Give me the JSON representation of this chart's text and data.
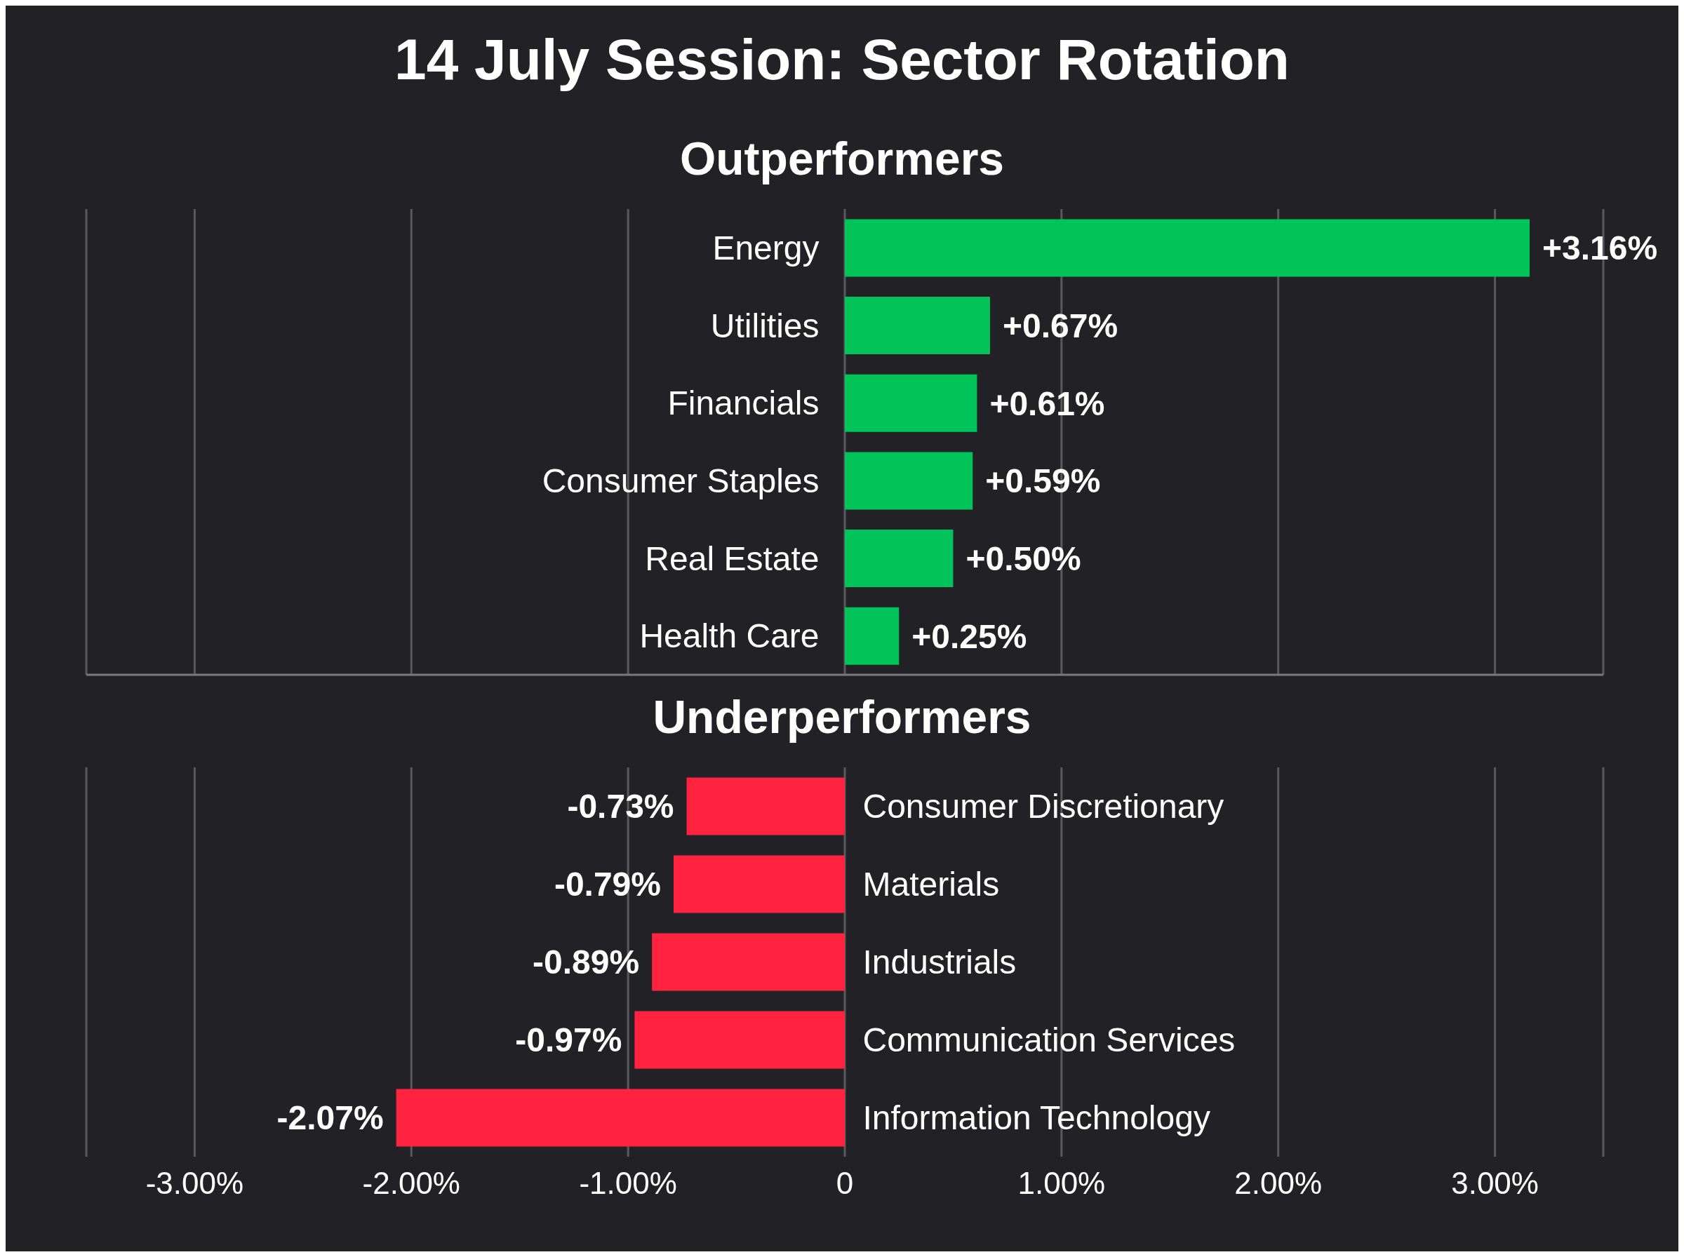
{
  "chart_data": [
    {
      "type": "bar",
      "orientation": "horizontal",
      "title": "14 July Session: Sector Rotation",
      "subtitle": "Outperformers",
      "categories": [
        "Energy",
        "Utilities",
        "Financials",
        "Consumer Staples",
        "Real Estate",
        "Health Care"
      ],
      "values": [
        3.16,
        0.67,
        0.61,
        0.59,
        0.5,
        0.25
      ],
      "color": "#00c35a",
      "value_labels": [
        "+3.16%",
        "+0.67%",
        "+0.61%",
        "+0.59%",
        "+0.50%",
        "+0.25%"
      ],
      "xlim": [
        -3.5,
        3.5
      ],
      "xticks": [
        {
          "value": -3,
          "label": null
        },
        {
          "value": -2,
          "label": null
        },
        {
          "value": -1,
          "label": null
        },
        {
          "value": 0,
          "label": null
        },
        {
          "value": 1,
          "label": null
        },
        {
          "value": 2,
          "label": null
        },
        {
          "value": 3,
          "label": null
        }
      ],
      "grid": "x",
      "tick_labels": "y"
    },
    {
      "type": "bar",
      "orientation": "horizontal",
      "title": "Underperformers",
      "categories": [
        "Consumer Discretionary",
        "Materials",
        "Industrials",
        "Communication Services",
        "Information Technology"
      ],
      "values": [
        -0.73,
        -0.79,
        -0.89,
        -0.97,
        -2.07
      ],
      "color": "#ff2340",
      "value_labels": [
        "-0.73%",
        "-0.79%",
        "-0.89%",
        "-0.97%",
        "-2.07%"
      ],
      "xlim": [
        -3.5,
        3.5
      ],
      "xticks": [
        {
          "value": -3,
          "label": "-3.00%"
        },
        {
          "value": -2,
          "label": "-2.00%"
        },
        {
          "value": -1,
          "label": "-1.00%"
        },
        0,
        {
          "value": 1,
          "label": "1.00%"
        },
        {
          "value": 2,
          "label": "2.00%"
        },
        {
          "value": 3,
          "label": "3.00%"
        }
      ],
      "grid": "x"
    }
  ]
}
